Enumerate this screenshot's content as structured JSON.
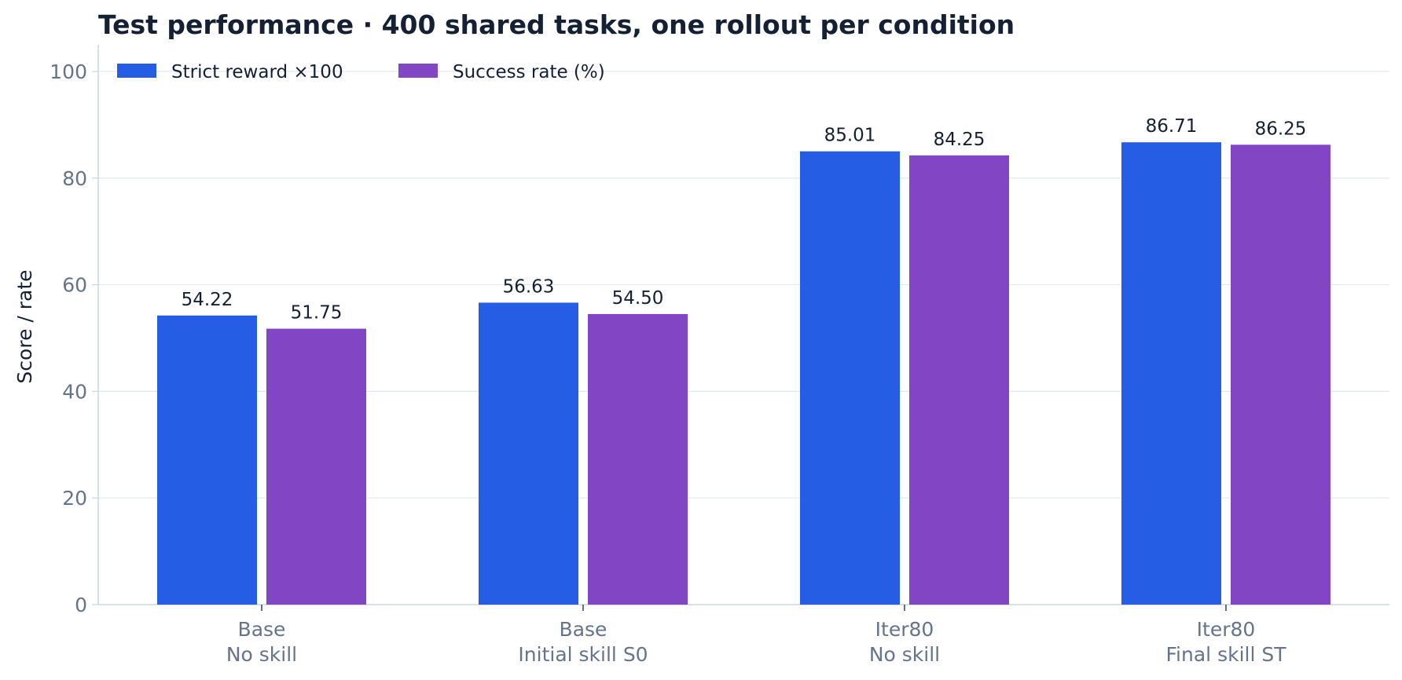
{
  "chart_data": {
    "type": "bar",
    "title": "Test performance · 400 shared tasks, one rollout per condition",
    "xlabel": "",
    "ylabel": "Score / rate",
    "ylim": [
      0,
      105
    ],
    "yticks": [
      "0",
      "20",
      "40",
      "60",
      "80",
      "100"
    ],
    "grid": true,
    "legend_position": "top-left",
    "categories": [
      [
        "Base",
        "No skill"
      ],
      [
        "Base",
        "Initial skill S0"
      ],
      [
        "Iter80",
        "No skill"
      ],
      [
        "Iter80",
        "Final skill ST"
      ]
    ],
    "series": [
      {
        "name": "Strict reward ×100",
        "color": "#255ee5",
        "values": [
          54.22,
          56.63,
          85.01,
          86.71
        ],
        "labels": [
          "54.22",
          "56.63",
          "85.01",
          "86.71"
        ]
      },
      {
        "name": "Success rate (%)",
        "color": "#8246c4",
        "values": [
          51.75,
          54.5,
          84.25,
          86.25
        ],
        "labels": [
          "51.75",
          "54.50",
          "84.25",
          "86.25"
        ]
      }
    ]
  }
}
